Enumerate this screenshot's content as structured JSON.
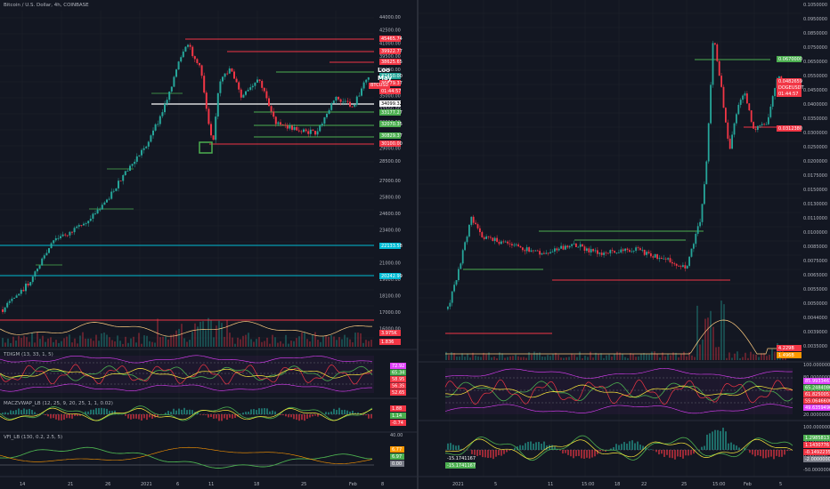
{
  "left": {
    "title": "Bitcoin / U.S. Dollar, 4h, COINBASE",
    "price_axis": [
      "44000.00",
      "42500.00",
      "41000.00",
      "39500.00",
      "38000.00",
      "36500.00",
      "35000.00",
      "33500.00",
      "32000.00",
      "30500.00",
      "29000.00",
      "28500.00",
      "27000.00",
      "25800.00",
      "24600.00",
      "23400.00",
      "22300.00",
      "21000.00",
      "19600.00",
      "18100.00",
      "17000.00",
      "16000.00"
    ],
    "level_labels": [
      {
        "text": "45465.74",
        "color": "#f23645"
      },
      {
        "text": "39922.77",
        "color": "#f23645"
      },
      {
        "text": "38625.65",
        "color": "#f23645"
      },
      {
        "text": "37450.00",
        "color": "#26a69a"
      },
      {
        "text": "36879.37",
        "color": "#f23645"
      },
      {
        "text": "01:44:57",
        "color": "#f23645"
      },
      {
        "text": "34099.32",
        "color": "#ffffff"
      },
      {
        "text": "33177.27",
        "color": "#4caf50"
      },
      {
        "text": "32070.35",
        "color": "#4caf50"
      },
      {
        "text": "30829.37",
        "color": "#4caf50"
      },
      {
        "text": "30100.00",
        "color": "#f23645"
      },
      {
        "text": "22133.58",
        "color": "#00bcd4"
      },
      {
        "text": "20242.99",
        "color": "#00bcd4"
      },
      {
        "text": "3.975K",
        "color": "#f23645"
      },
      {
        "text": "1.836",
        "color": "#f23645"
      }
    ],
    "look_text": "Loo",
    "may_text": "May",
    "symbol_tag": "BTCUSD",
    "tdi_legend": "TDIGM (13, 33, 1, 5)",
    "tdi_values": [
      {
        "text": "72.92",
        "color": "#e040fb"
      },
      {
        "text": "65.34",
        "color": "#4caf50"
      },
      {
        "text": "58.95",
        "color": "#f23645"
      },
      {
        "text": "56.35",
        "color": "#f23645"
      },
      {
        "text": "52.65",
        "color": "#f23645"
      }
    ],
    "macz_legend": "MACZVWAP_LB (12, 25, 9, 20, 25, 1, 1, 0.02)",
    "macz_values": [
      {
        "text": "1.88",
        "color": "#f23645"
      },
      {
        "text": "1.14",
        "color": "#4caf50"
      },
      {
        "text": "-0.74",
        "color": "#f23645"
      }
    ],
    "vfi_legend": "VFI_LB (130, 0.2, 2.5, 5)",
    "vfi_axis_top": "40.00",
    "vfi_values": [
      {
        "text": "6.77",
        "color": "#ff9800"
      },
      {
        "text": "6.97",
        "color": "#4caf50"
      },
      {
        "text": "0.00",
        "color": "#787b86"
      }
    ],
    "time_labels": [
      "14",
      "21",
      "26",
      "2021",
      "6",
      "11",
      "18",
      "25",
      "Feb",
      "8"
    ]
  },
  "right": {
    "price_axis": [
      "0.1050000",
      "0.0950000",
      "0.0850000",
      "0.0750000",
      "0.0650000",
      "0.0550000",
      "0.0450000",
      "0.0400000",
      "0.0350000",
      "0.0300000",
      "0.0250000",
      "0.0200000",
      "0.0175000",
      "0.0150000",
      "0.0130000",
      "0.0110000",
      "0.0100000",
      "0.0085000",
      "0.0075000",
      "0.0065000",
      "0.0055000",
      "0.0050000",
      "0.0044000",
      "0.0039000",
      "0.0035000"
    ],
    "level_labels": [
      {
        "text": "0.0670000",
        "color": "#4caf50"
      },
      {
        "text": "0.0482659",
        "color": "#f23645"
      },
      {
        "text": "DOGEUSDT",
        "color": "#f23645"
      },
      {
        "text": "01:44:57",
        "color": "#f23645"
      },
      {
        "text": "0.0312380",
        "color": "#f23645"
      },
      {
        "text": "4.229B",
        "color": "#f23645"
      },
      {
        "text": "1.496B",
        "color": "#ff9800"
      }
    ],
    "osc1_axis": [
      "100.0000000",
      "80.0000000",
      "60.0000000",
      "40.0000000",
      "20.0000000"
    ],
    "osc1_values": [
      {
        "text": "85.9933461",
        "color": "#e040fb"
      },
      {
        "text": "65.2484086",
        "color": "#4caf50"
      },
      {
        "text": "61.8250051",
        "color": "#f23645"
      },
      {
        "text": "55.0646600",
        "color": "#f23645"
      },
      {
        "text": "49.6359496",
        "color": "#e040fb"
      }
    ],
    "osc2_axis": [
      "100.0000000",
      "50.0000000",
      "0.0000000",
      "-50.0000000"
    ],
    "osc2_values": [
      {
        "text": "1.2985813",
        "color": "#4caf50"
      },
      {
        "text": "1.1430776",
        "color": "#f23645"
      },
      {
        "text": "-0.1492235",
        "color": "#f23645"
      },
      {
        "text": "-2.0000000",
        "color": "#787b86"
      }
    ],
    "osc2_left_values": [
      {
        "text": "-15.1741167",
        "color": "#131722"
      },
      {
        "text": "-15.1741167",
        "color": "#4caf50"
      }
    ],
    "time_labels": [
      "2021",
      "5",
      "11",
      "15:00",
      "18",
      "22",
      "25",
      "15:00",
      "Feb",
      "5"
    ]
  },
  "colors": {
    "bg": "#131722",
    "up": "#26a69a",
    "down": "#f23645",
    "grid": "#1e222d"
  }
}
